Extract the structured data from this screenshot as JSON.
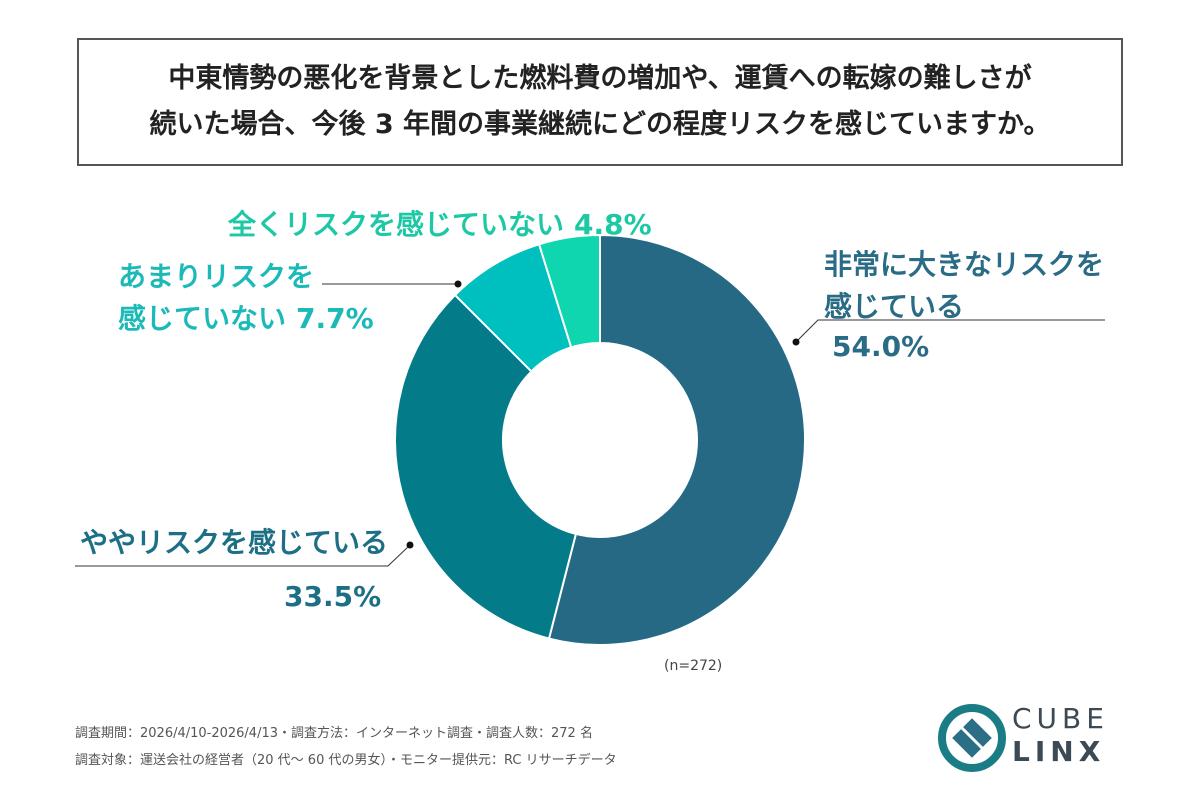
{
  "chart_data": {
    "type": "donut",
    "title": [
      "中東情勢の悪化を背景とした燃料費の増加や、運賃への転嫁の難しさが",
      "続いた場合、今後 3 年間の事業継続にどの程度リスクを感じていますか。"
    ],
    "categories": [
      "非常に大きなリスクを\n感じている",
      "ややリスクを感じている",
      "あまりリスクを\n感じていない",
      "全くリスクを感じていない"
    ],
    "values": [
      54.0,
      33.5,
      7.7,
      4.8
    ],
    "value_labels": [
      "54.0%",
      "33.5%",
      "7.7%",
      "4.8%"
    ],
    "colors": [
      "#256985",
      "#037b88",
      "#00bfbf",
      "#10d6b0"
    ],
    "label_colors": [
      "#2a6b86",
      "#1d6f86",
      "#1cb9b9",
      "#1dc9a5"
    ],
    "sample_note": "(n=272)",
    "footnotes": [
      "調査期間：2026/4/10-2026/4/13・調査方法：インターネット調査・調査人数：272 名",
      "調査対象：運送会社の経営者（20 代〜 60 代の男女）・モニター提供元：RC リサーチデータ"
    ],
    "logo": [
      "CUBE",
      "LINX"
    ]
  }
}
